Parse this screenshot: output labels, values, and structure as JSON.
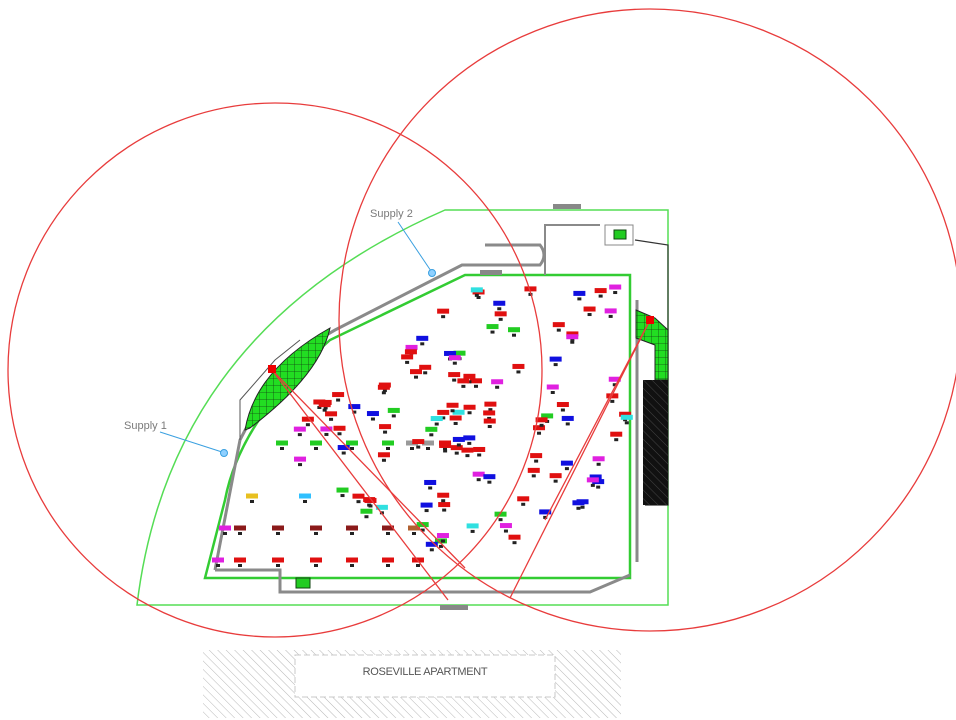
{
  "labels": {
    "supply_2": "Supply 2",
    "supply_1": "Supply 1",
    "building": "ROSEVILLE APARTMENT"
  }
}
